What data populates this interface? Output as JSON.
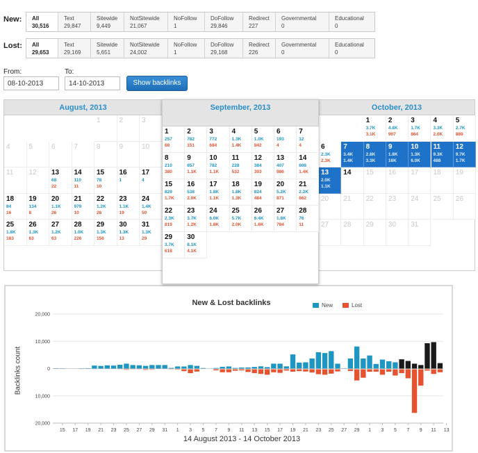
{
  "new_row": {
    "label": "New:",
    "stats": [
      {
        "label": "All",
        "value": "30,516"
      },
      {
        "label": "Text",
        "value": "29,847"
      },
      {
        "label": "Sitewide",
        "value": "9,449"
      },
      {
        "label": "NotSitewide",
        "value": "21,067"
      },
      {
        "label": "NoFollow",
        "value": "1"
      },
      {
        "label": "DoFollow",
        "value": "29,846"
      },
      {
        "label": "Redirect",
        "value": "227"
      },
      {
        "label": "Governmental",
        "value": "0"
      },
      {
        "label": "Educational",
        "value": "0"
      }
    ]
  },
  "lost_row": {
    "label": "Lost:",
    "stats": [
      {
        "label": "All",
        "value": "29,653"
      },
      {
        "label": "Text",
        "value": "29,169"
      },
      {
        "label": "Sitewide",
        "value": "5,651"
      },
      {
        "label": "NotSitewide",
        "value": "24,002"
      },
      {
        "label": "NoFollow",
        "value": "1"
      },
      {
        "label": "DoFollow",
        "value": "29,168"
      },
      {
        "label": "Redirect",
        "value": "226"
      },
      {
        "label": "Governmental",
        "value": "0"
      },
      {
        "label": "Educational",
        "value": "0"
      }
    ]
  },
  "date_filter": {
    "from_label": "From:",
    "from_value": "08-10-2013",
    "to_label": "To:",
    "to_value": "14-10-2013",
    "button_label": "Show backlinks"
  },
  "calendar": {
    "months": [
      {
        "title": "August, 2013",
        "days": [
          {
            "d": "1",
            "dim": true
          },
          {
            "d": "2",
            "dim": true
          },
          {
            "d": "3",
            "dim": true
          },
          {
            "d": "4",
            "dim": true
          },
          {
            "d": "5",
            "dim": true
          },
          {
            "d": "6",
            "dim": true
          },
          {
            "d": "7",
            "dim": true
          },
          {
            "d": "8",
            "dim": true
          },
          {
            "d": "9",
            "dim": true
          },
          {
            "d": "10",
            "dim": true
          },
          {
            "d": "11",
            "dim": true
          },
          {
            "d": "12",
            "dim": true
          },
          {
            "d": "13",
            "n": "68",
            "l": "22"
          },
          {
            "d": "14",
            "n": "110",
            "l": "11"
          },
          {
            "d": "15",
            "n": "78",
            "l": "10"
          },
          {
            "d": "16",
            "n": "1",
            "l": ""
          },
          {
            "d": "17",
            "n": "4",
            "l": ""
          },
          {
            "d": "18",
            "n": "84",
            "l": "16"
          },
          {
            "d": "19",
            "n": "134",
            "l": "8"
          },
          {
            "d": "20",
            "n": "1.1K",
            "l": "26"
          },
          {
            "d": "21",
            "n": "979",
            "l": "10"
          },
          {
            "d": "22",
            "n": "1.2K",
            "l": "26"
          },
          {
            "d": "23",
            "n": "1.1K",
            "l": "19"
          },
          {
            "d": "24",
            "n": "1.4K",
            "l": "50"
          },
          {
            "d": "25",
            "n": "1.8K",
            "l": "183"
          },
          {
            "d": "26",
            "n": "1.3K",
            "l": "63"
          },
          {
            "d": "27",
            "n": "1.2K",
            "l": "63"
          },
          {
            "d": "28",
            "n": "1.0K",
            "l": "226"
          },
          {
            "d": "29",
            "n": "1.3K",
            "l": "156"
          },
          {
            "d": "30",
            "n": "1.3K",
            "l": "13"
          },
          {
            "d": "31",
            "n": "1.3K",
            "l": "29"
          }
        ]
      },
      {
        "title": "September, 2013",
        "days": [
          {
            "d": "1",
            "n": "257",
            "l": "68"
          },
          {
            "d": "2",
            "n": "782",
            "l": "151"
          },
          {
            "d": "3",
            "n": "772",
            "l": "684"
          },
          {
            "d": "4",
            "n": "1.3K",
            "l": "1.4K"
          },
          {
            "d": "5",
            "n": "1.0K",
            "l": "842"
          },
          {
            "d": "6",
            "n": "193",
            "l": "4"
          },
          {
            "d": "7",
            "n": "12",
            "l": "4"
          },
          {
            "d": "8",
            "n": "210",
            "l": "380"
          },
          {
            "d": "9",
            "n": "657",
            "l": "1.1K"
          },
          {
            "d": "10",
            "n": "782",
            "l": "1.1K"
          },
          {
            "d": "11",
            "n": "228",
            "l": "532"
          },
          {
            "d": "12",
            "n": "384",
            "l": "393"
          },
          {
            "d": "13",
            "n": "407",
            "l": "986"
          },
          {
            "d": "14",
            "n": "608",
            "l": "1.4K"
          },
          {
            "d": "15",
            "n": "829",
            "l": "1.7K"
          },
          {
            "d": "16",
            "n": "538",
            "l": "2.0K"
          },
          {
            "d": "17",
            "n": "1.8K",
            "l": "1.1K"
          },
          {
            "d": "18",
            "n": "1.8K",
            "l": "1.3K"
          },
          {
            "d": "19",
            "n": "824",
            "l": "484"
          },
          {
            "d": "20",
            "n": "5.2K",
            "l": "871"
          },
          {
            "d": "21",
            "n": "2.2K",
            "l": "662"
          },
          {
            "d": "22",
            "n": "2.3K",
            "l": "819"
          },
          {
            "d": "23",
            "n": "3.7K",
            "l": "1.2K"
          },
          {
            "d": "24",
            "n": "6.0K",
            "l": "1.8K"
          },
          {
            "d": "25",
            "n": "5.7K",
            "l": "2.0K"
          },
          {
            "d": "26",
            "n": "6.4K",
            "l": "1.6K"
          },
          {
            "d": "27",
            "n": "1.8K",
            "l": "784"
          },
          {
            "d": "28",
            "n": "76",
            "l": "11"
          },
          {
            "d": "29",
            "n": "3.7K",
            "l": "618"
          },
          {
            "d": "30",
            "n": "8.1K",
            "l": "4.1K"
          }
        ]
      },
      {
        "title": "October, 2013",
        "days": [
          {
            "d": "1",
            "n": "3.7K",
            "l": "3.1K"
          },
          {
            "d": "2",
            "n": "4.8K",
            "l": "907"
          },
          {
            "d": "3",
            "n": "1.7K",
            "l": "864"
          },
          {
            "d": "4",
            "n": "3.3K",
            "l": "2.0K"
          },
          {
            "d": "5",
            "n": "2.7K",
            "l": "889"
          },
          {
            "d": "6",
            "n": "2.3K",
            "l": "2.3K"
          },
          {
            "d": "7",
            "n": "3.4K",
            "l": "1.4K",
            "sel": true
          },
          {
            "d": "8",
            "n": "2.8K",
            "l": "3.3K",
            "sel": true
          },
          {
            "d": "9",
            "n": "1.8K",
            "l": "16K",
            "sel": true
          },
          {
            "d": "10",
            "n": "1.3K",
            "l": "6.0K",
            "sel": true
          },
          {
            "d": "11",
            "n": "9.3K",
            "l": "488",
            "sel": true
          },
          {
            "d": "12",
            "n": "9.7K",
            "l": "1.7K",
            "sel": true
          },
          {
            "d": "13",
            "n": "2.0K",
            "l": "1.1K",
            "sel": true
          },
          {
            "d": "14",
            "n": "",
            "l": ""
          },
          {
            "d": "15",
            "dim": true
          },
          {
            "d": "16",
            "dim": true
          },
          {
            "d": "17",
            "dim": true
          },
          {
            "d": "18",
            "dim": true
          },
          {
            "d": "19",
            "dim": true
          },
          {
            "d": "20",
            "dim": true
          },
          {
            "d": "21",
            "dim": true
          },
          {
            "d": "22",
            "dim": true
          },
          {
            "d": "23",
            "dim": true
          },
          {
            "d": "24",
            "dim": true
          },
          {
            "d": "25",
            "dim": true
          },
          {
            "d": "26",
            "dim": true
          },
          {
            "d": "27",
            "dim": true
          },
          {
            "d": "28",
            "dim": true
          },
          {
            "d": "29",
            "dim": true
          },
          {
            "d": "30",
            "dim": true
          },
          {
            "d": "31",
            "dim": true
          }
        ]
      }
    ]
  },
  "chart_data": {
    "type": "bar",
    "title": "New & Lost backlinks",
    "ylabel": "Backlinks count",
    "range_label": "14 August 2013 - 14 October 2013",
    "ylim": [
      -20000,
      20000
    ],
    "yticks": [
      "20,000",
      "10,000",
      "0",
      "10,000",
      "20,000"
    ],
    "xticks": [
      "15",
      "17",
      "19",
      "21",
      "23",
      "25",
      "27",
      "29",
      "31",
      "1",
      "3",
      "5",
      "7",
      "9",
      "11",
      "13",
      "15",
      "17",
      "19",
      "21",
      "23",
      "25",
      "27",
      "29",
      "1",
      "3",
      "5",
      "7",
      "9",
      "11",
      "13"
    ],
    "legend": [
      {
        "name": "New",
        "color": "#1e96c2"
      },
      {
        "name": "Lost",
        "color": "#e55330"
      }
    ],
    "highlight_color": "#1a1a1a",
    "x": [
      "Aug 14",
      "Aug 15",
      "Aug 16",
      "Aug 17",
      "Aug 18",
      "Aug 19",
      "Aug 20",
      "Aug 21",
      "Aug 22",
      "Aug 23",
      "Aug 24",
      "Aug 25",
      "Aug 26",
      "Aug 27",
      "Aug 28",
      "Aug 29",
      "Aug 30",
      "Aug 31",
      "Sep 1",
      "Sep 2",
      "Sep 3",
      "Sep 4",
      "Sep 5",
      "Sep 6",
      "Sep 7",
      "Sep 8",
      "Sep 9",
      "Sep 10",
      "Sep 11",
      "Sep 12",
      "Sep 13",
      "Sep 14",
      "Sep 15",
      "Sep 16",
      "Sep 17",
      "Sep 18",
      "Sep 19",
      "Sep 20",
      "Sep 21",
      "Sep 22",
      "Sep 23",
      "Sep 24",
      "Sep 25",
      "Sep 26",
      "Sep 27",
      "Sep 28",
      "Sep 29",
      "Sep 30",
      "Oct 1",
      "Oct 2",
      "Oct 3",
      "Oct 4",
      "Oct 5",
      "Oct 6",
      "Oct 7",
      "Oct 8",
      "Oct 9",
      "Oct 10",
      "Oct 11",
      "Oct 12",
      "Oct 13"
    ],
    "series": [
      {
        "name": "New",
        "values": [
          110,
          78,
          1,
          4,
          84,
          134,
          1100,
          979,
          1200,
          1100,
          1400,
          1800,
          1300,
          1200,
          1000,
          1300,
          1300,
          1300,
          257,
          782,
          772,
          1300,
          1000,
          193,
          12,
          210,
          657,
          782,
          228,
          384,
          407,
          608,
          829,
          538,
          1800,
          1800,
          824,
          5200,
          2200,
          2300,
          3700,
          6000,
          5700,
          6400,
          1800,
          76,
          3700,
          8100,
          3700,
          4800,
          1700,
          3300,
          2700,
          2300,
          3400,
          2800,
          1800,
          1300,
          9300,
          9700,
          2000
        ]
      },
      {
        "name": "Lost",
        "values": [
          11,
          10,
          0,
          0,
          16,
          8,
          26,
          10,
          26,
          19,
          50,
          183,
          63,
          63,
          226,
          156,
          13,
          29,
          68,
          151,
          684,
          1400,
          842,
          4,
          4,
          380,
          1100,
          1100,
          532,
          393,
          986,
          1400,
          1700,
          2000,
          1100,
          1300,
          484,
          871,
          662,
          819,
          1200,
          1800,
          2000,
          1600,
          784,
          11,
          618,
          4100,
          3100,
          907,
          864,
          2000,
          889,
          2300,
          1400,
          3300,
          16000,
          6000,
          488,
          1700,
          1100
        ]
      }
    ],
    "highlighted_x": [
      "Oct 7",
      "Oct 8",
      "Oct 9",
      "Oct 10",
      "Oct 11",
      "Oct 12",
      "Oct 13"
    ]
  }
}
